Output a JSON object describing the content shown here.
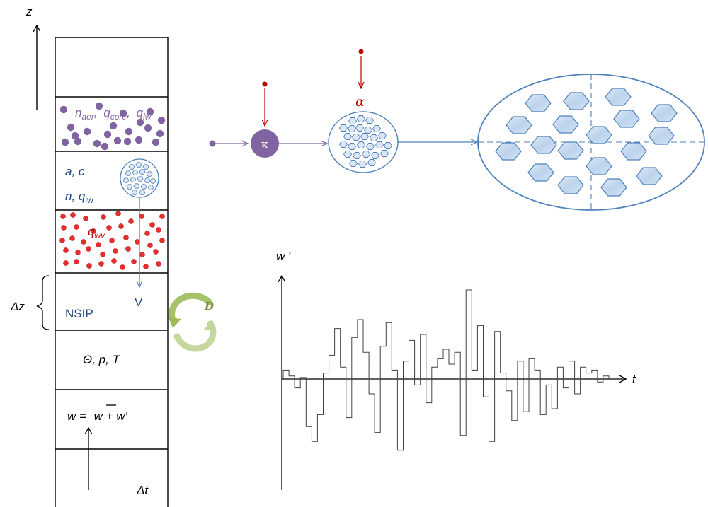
{
  "axis_z": {
    "label": "z"
  },
  "column": {
    "aerosol": {
      "n": "n",
      "n_sub": "aer",
      "qc": "q",
      "qc_sub": "core",
      "ql": "q",
      "ql_sub": "lw",
      "sep": ",",
      "color": "#8064a2"
    },
    "ice": {
      "line1": "a,  c",
      "n": "n,  q",
      "n_sub": "iw",
      "color": "#4f81bd"
    },
    "vapor": {
      "q": "q",
      "q_sub": "wv",
      "color": "#c00000"
    },
    "sedimentation": {
      "label": "V"
    },
    "nsip": {
      "label": "NSIP"
    },
    "dz": {
      "label": "Δz"
    },
    "thermo": {
      "label": "Θ, p, T"
    },
    "wind": {
      "lhs": "w = ",
      "wbar": "w",
      "plus": " + w′"
    },
    "dt": {
      "label": "Δt"
    }
  },
  "diffusion": {
    "label": "D",
    "color_light": "#c3d69b",
    "color_dark": "#9bbb59",
    "label_color": "#76923c"
  },
  "pipeline": {
    "kappa": {
      "label": "κ",
      "color": "#8064a2"
    },
    "alpha": {
      "label": "α",
      "color": "#c00000"
    },
    "line_color": "#8064a2",
    "blue": "#4f81bd"
  },
  "timeseries": {
    "y_label": "w ′",
    "x_label": "t",
    "values": [
      0.3,
      0.1,
      -0.3,
      0.05,
      -1.6,
      -2.1,
      -1.2,
      0.2,
      0.8,
      1.7,
      0.4,
      -1.3,
      1.4,
      2.0,
      0.9,
      -0.5,
      -1.8,
      1.1,
      1.9,
      0.3,
      -2.4,
      0.6,
      1.3,
      -0.2,
      1.5,
      -0.8,
      0.4,
      0.7,
      1.0,
      0.5,
      0.9,
      -1.9,
      3.0,
      0.3,
      1.8,
      -0.6,
      -2.1,
      1.6,
      0.2,
      -0.4,
      -1.4,
      0.6,
      -1.1,
      0.7,
      0.3,
      -1.2,
      -0.2,
      -1.0,
      0.4,
      -0.3,
      0.6,
      -0.5,
      0.4,
      0.2,
      0.3,
      -0.1,
      0.1
    ]
  }
}
